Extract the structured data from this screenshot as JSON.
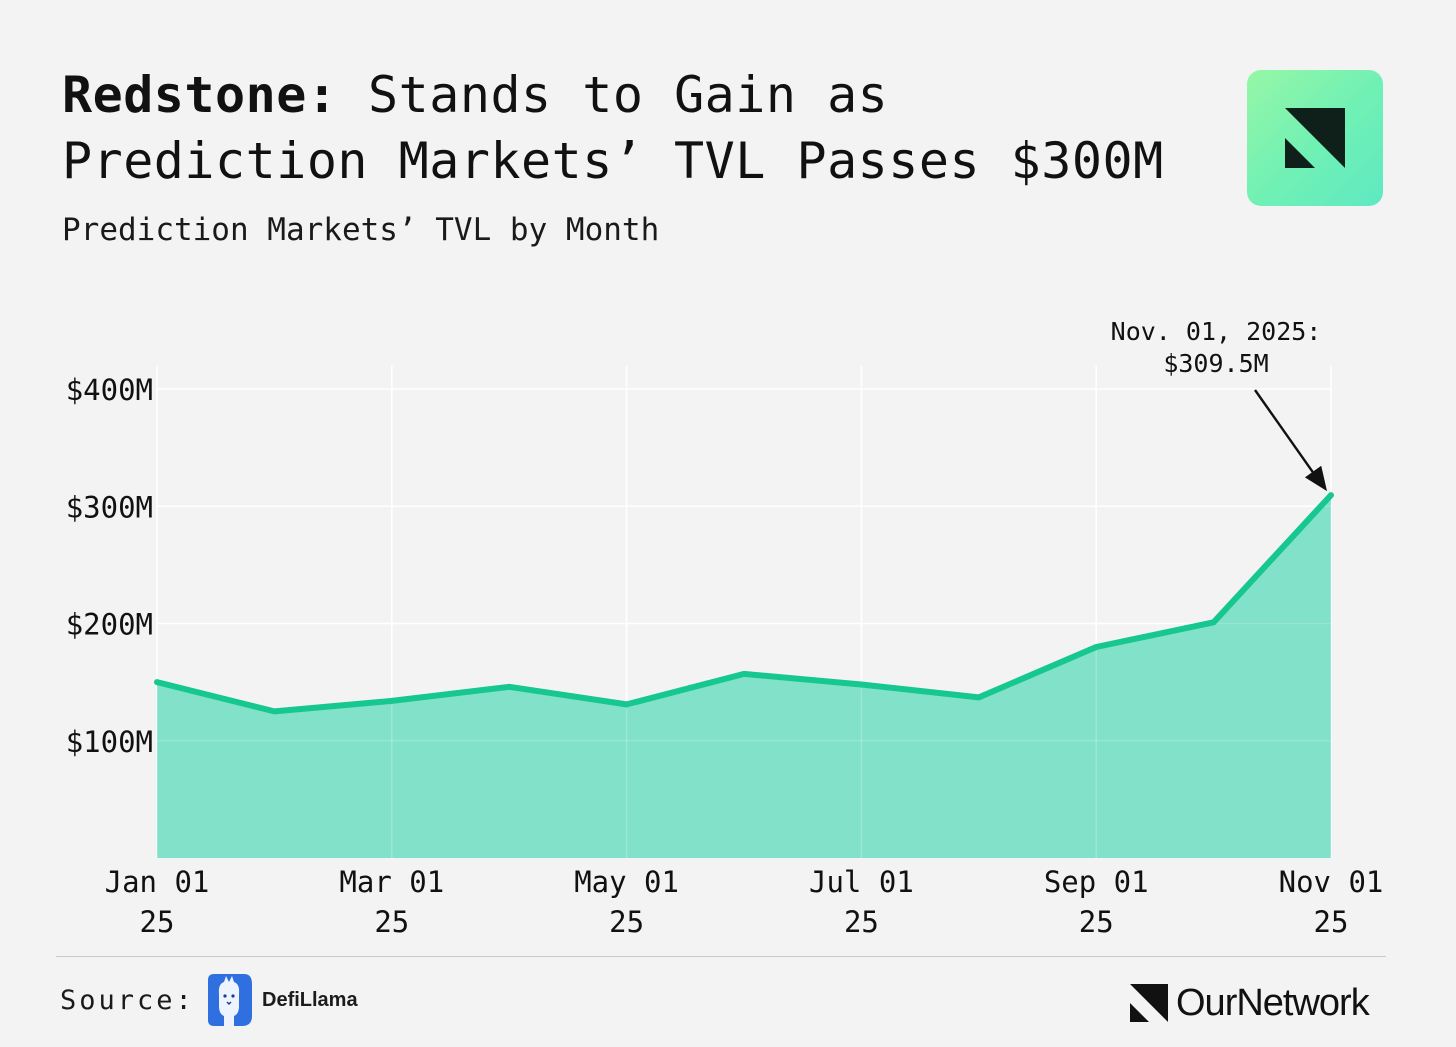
{
  "header": {
    "title_bold": "Redstone:",
    "title_rest": " Stands to Gain as Prediction Markets’ TVL Passes $300M",
    "subtitle": "Prediction Markets’ TVL by Month"
  },
  "colors": {
    "line": "#16c78f",
    "area": "#7adfc6",
    "grid": "#ffffff",
    "background": "#f3f3f3"
  },
  "chart_data": {
    "type": "area",
    "title": "Prediction Markets’ TVL by Month",
    "x": [
      "2025-01-01",
      "2025-02-01",
      "2025-03-01",
      "2025-04-01",
      "2025-05-01",
      "2025-06-01",
      "2025-07-01",
      "2025-08-01",
      "2025-09-01",
      "2025-10-01",
      "2025-11-01"
    ],
    "values": [
      150,
      125,
      134,
      146,
      131,
      157,
      148,
      137,
      180,
      201,
      309.5
    ],
    "unit": "$M",
    "ylim": [
      0,
      420
    ],
    "yticks": [
      {
        "value": 100,
        "label": "$100M"
      },
      {
        "value": 200,
        "label": "$200M"
      },
      {
        "value": 300,
        "label": "$300M"
      },
      {
        "value": 400,
        "label": "$400M"
      }
    ],
    "xticks": [
      {
        "index": 0,
        "line1": "Jan 01",
        "line2": "25"
      },
      {
        "index": 2,
        "line1": "Mar 01",
        "line2": "25"
      },
      {
        "index": 4,
        "line1": "May 01",
        "line2": "25"
      },
      {
        "index": 6,
        "line1": "Jul 01",
        "line2": "25"
      },
      {
        "index": 8,
        "line1": "Sep 01",
        "line2": "25"
      },
      {
        "index": 10,
        "line1": "Nov 01",
        "line2": "25"
      }
    ],
    "annotation": {
      "index": 10,
      "line1": "Nov. 01, 2025:",
      "line2": "$309.5M"
    },
    "grid": true,
    "legend": "none"
  },
  "footer": {
    "source_label": "Source:",
    "source_name": "DefiLlama",
    "brand": "OurNetwork"
  }
}
